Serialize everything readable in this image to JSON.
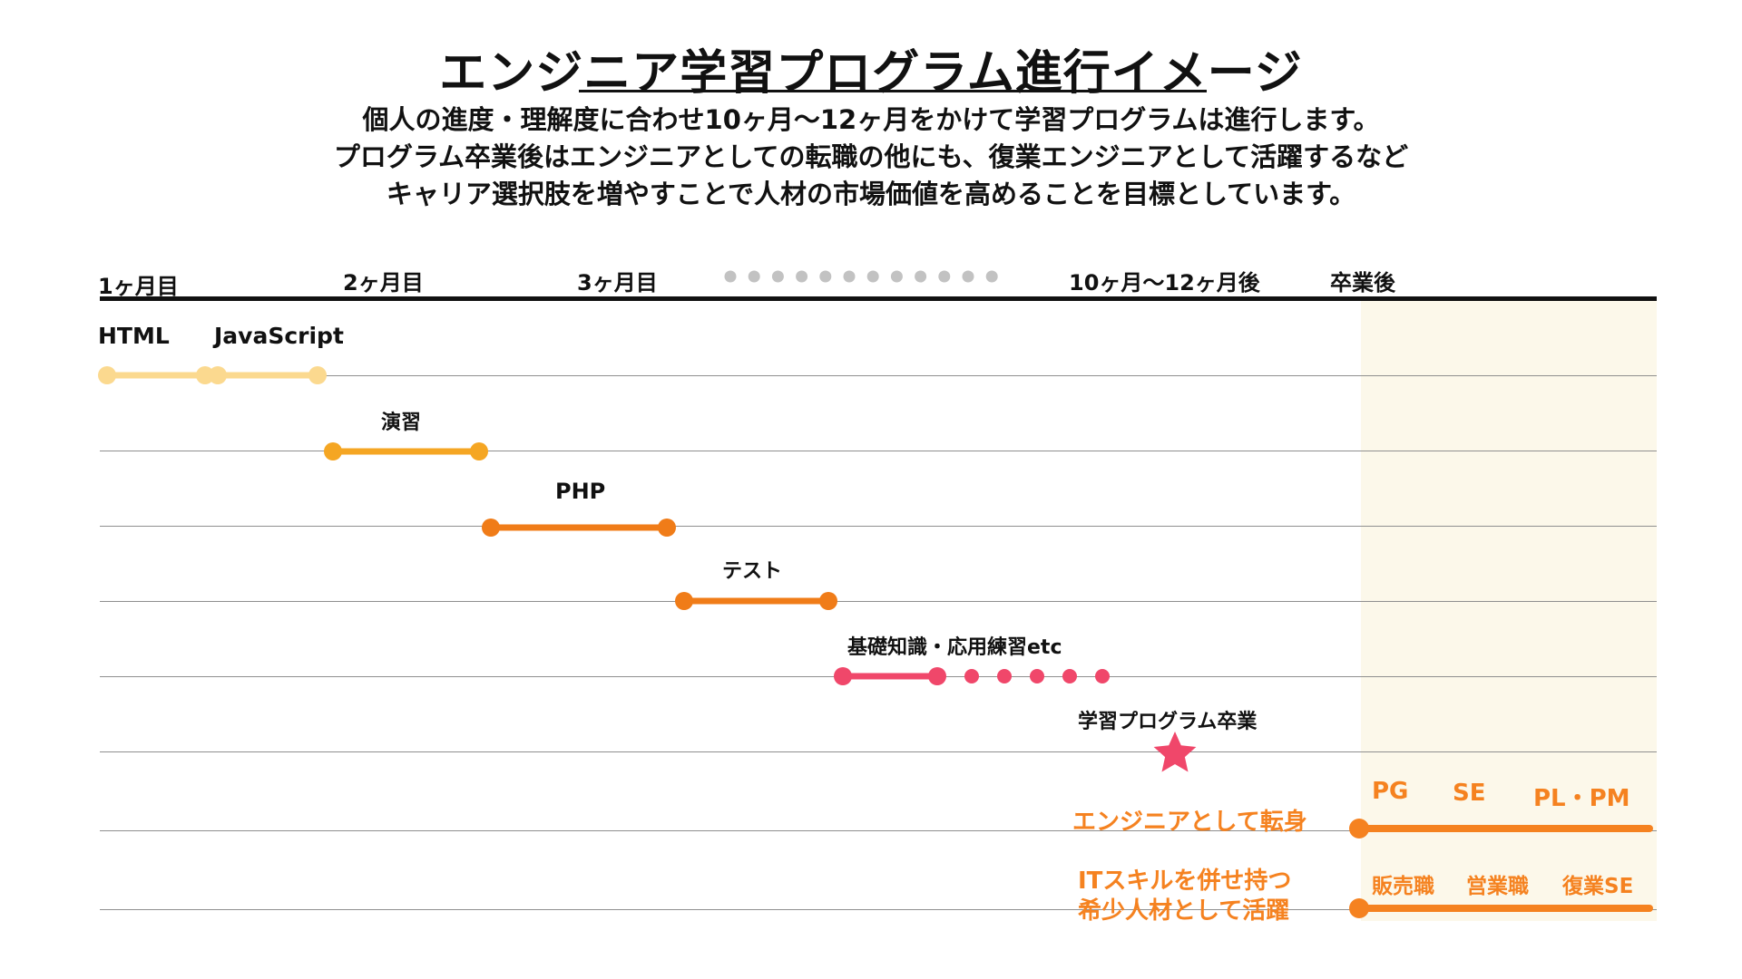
{
  "title": "エンジニア学習プログラム進行イメージ",
  "subtitle": {
    "line1": "個人の進度・理解度に合わせ10ヶ月〜12ヶ月をかけて学習プログラムは進行します。",
    "line2": "プログラム卒業後はエンジニアとしての転職の他にも、復業エンジニアとして活躍するなど",
    "line3": "キャリア選択肢を増やすことで人材の市場価値を高めることを目標としています。"
  },
  "timeline": {
    "months": [
      "1ヶ月目",
      "2ヶ月目",
      "3ヶ月目",
      "10ヶ月〜12ヶ月後",
      "卒業後"
    ],
    "topics": [
      "HTML",
      "JavaScript",
      "演習",
      "PHP",
      "テスト",
      "基礎知識・応用練習etc",
      "学習プログラム卒業"
    ],
    "after": {
      "career_change": {
        "label": "エンジニアとして転身",
        "roles": [
          "PG",
          "SE",
          "PL・PM"
        ]
      },
      "rare_talent": {
        "label_line1": "ITスキルを併せ持つ",
        "label_line2": "希少人材として活躍",
        "roles": [
          "販売職",
          "営業職",
          "復業SE"
        ]
      }
    }
  },
  "colors": {
    "html_js": "#fbd98f",
    "practice": "#f5a623",
    "php": "#f07c18",
    "test": "#f07c18",
    "fundamentals": "#f0476a",
    "graduation_star": "#f0476a",
    "career_line": "#f58220",
    "career_text": "#f58220",
    "ellipsis_dots": "#c2c2c2",
    "after_panel": "#fcf8ea"
  }
}
